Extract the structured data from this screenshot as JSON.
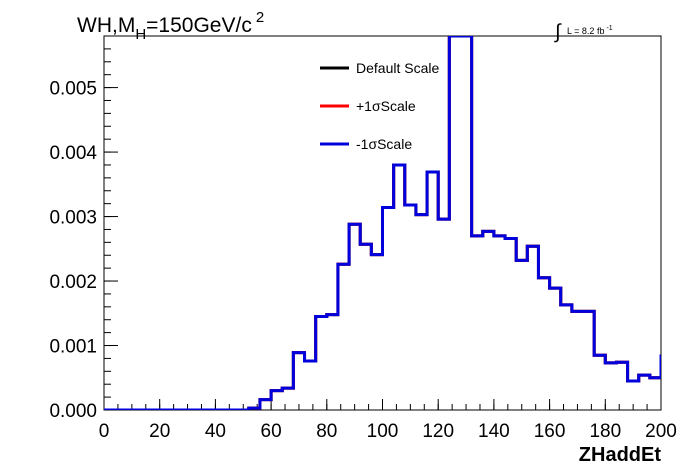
{
  "chart_data": {
    "type": "line",
    "title": {
      "main": "WH,M",
      "sub": "H",
      "value": "=150GeV/c",
      "sup": "2"
    },
    "luminosity": {
      "symbol": "∫",
      "text": "L = 8.2 fb",
      "sup": "-1"
    },
    "xlabel": "ZHaddEt",
    "ylabel": "",
    "xlim": [
      0,
      200
    ],
    "ylim": [
      0,
      0.0058
    ],
    "x_ticks": [
      "0",
      "20",
      "40",
      "60",
      "80",
      "100",
      "120",
      "140",
      "160",
      "180",
      "200"
    ],
    "y_ticks": [
      "0.000",
      "0.001",
      "0.002",
      "0.003",
      "0.004",
      "0.005"
    ],
    "bin_edges": [
      0,
      4,
      8,
      12,
      16,
      20,
      24,
      28,
      32,
      36,
      40,
      44,
      48,
      52,
      56,
      60,
      64,
      68,
      72,
      76,
      80,
      84,
      88,
      92,
      96,
      100,
      104,
      108,
      112,
      116,
      120,
      124,
      128,
      132,
      136,
      140,
      144,
      148,
      152,
      156,
      160,
      164,
      168,
      172,
      176,
      180,
      184,
      188,
      192,
      196,
      200
    ],
    "series": [
      {
        "name": "Default Scale",
        "color": "#000000",
        "values": [
          0,
          0,
          0,
          0,
          0,
          0,
          0,
          0,
          0,
          0,
          0,
          0,
          0,
          3e-05,
          0.00016,
          0.0003,
          0.00034,
          0.00089,
          0.00076,
          0.00145,
          0.00148,
          0.00226,
          0.00288,
          0.00257,
          0.00241,
          0.00314,
          0.0038,
          0.00318,
          0.00303,
          0.00369,
          0.00296,
          0.0058,
          0.0058,
          0.0027,
          0.00277,
          0.0027,
          0.00266,
          0.00232,
          0.00254,
          0.00205,
          0.00189,
          0.00163,
          0.00153,
          0.00153,
          0.00085,
          0.00073,
          0.00074,
          0.00045,
          0.00054,
          0.0005,
          0.00086
        ]
      },
      {
        "name": "+1σScale",
        "color": "#ff0000",
        "values": [
          0,
          0,
          0,
          0,
          0,
          0,
          0,
          0,
          0,
          0,
          0,
          0,
          0,
          3e-05,
          0.00016,
          0.0003,
          0.00034,
          0.00089,
          0.00076,
          0.00145,
          0.00148,
          0.00226,
          0.00288,
          0.00257,
          0.00241,
          0.00314,
          0.0038,
          0.00318,
          0.00303,
          0.00369,
          0.00296,
          0.0058,
          0.0058,
          0.0027,
          0.00277,
          0.0027,
          0.00266,
          0.00232,
          0.00254,
          0.00205,
          0.00189,
          0.00163,
          0.00153,
          0.00153,
          0.00085,
          0.00073,
          0.00074,
          0.00045,
          0.00054,
          0.0005,
          0.00086
        ]
      },
      {
        "name": "-1σScale",
        "color": "#0000dd",
        "values": [
          0,
          0,
          0,
          0,
          0,
          0,
          0,
          0,
          0,
          0,
          0,
          0,
          0,
          3e-05,
          0.00016,
          0.0003,
          0.00034,
          0.00089,
          0.00076,
          0.00145,
          0.00148,
          0.00226,
          0.00288,
          0.00257,
          0.00241,
          0.00314,
          0.0038,
          0.00318,
          0.00303,
          0.00369,
          0.00296,
          0.0058,
          0.0058,
          0.0027,
          0.00277,
          0.0027,
          0.00266,
          0.00232,
          0.00254,
          0.00205,
          0.00189,
          0.00163,
          0.00153,
          0.00153,
          0.00085,
          0.00073,
          0.00074,
          0.00045,
          0.00054,
          0.0005,
          0.00086
        ]
      }
    ],
    "legend_placement": "top-center",
    "grid": false
  }
}
